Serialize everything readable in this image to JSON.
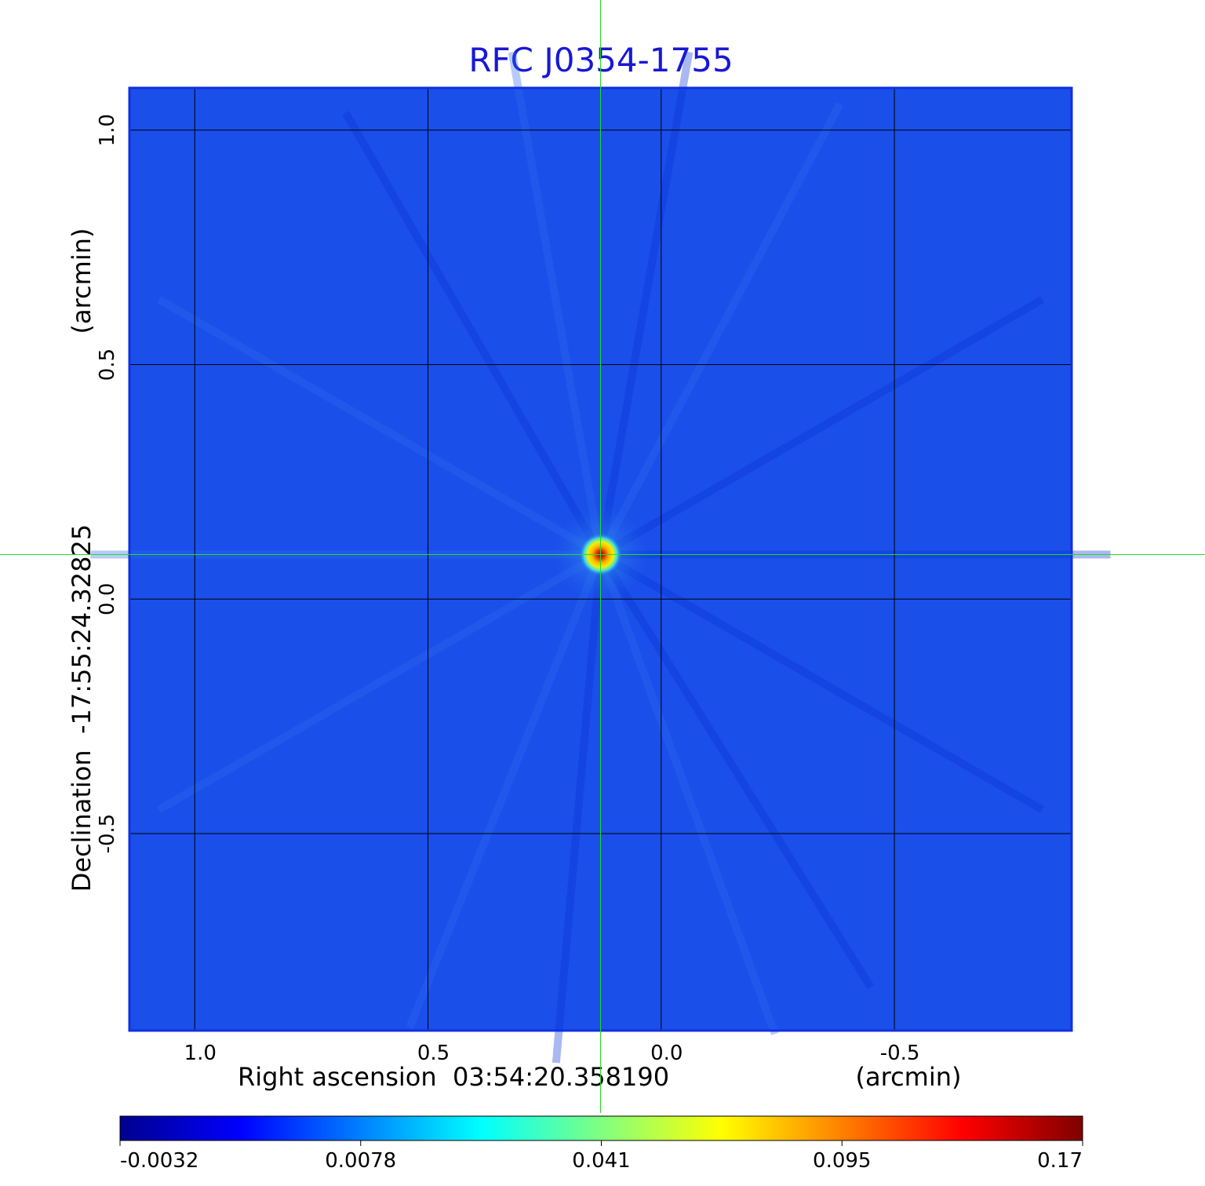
{
  "chart_data": {
    "type": "heatmap",
    "title": "RFC J0354-1755",
    "xlabel": "Right ascension  03:54:20.358190",
    "xunit": "(arcmin)",
    "ylabel": "Declination  -17:55:24.32825",
    "yunit": "(arcmin)",
    "xlim": [
      1.14,
      -0.88
    ],
    "ylim": [
      -0.92,
      1.09
    ],
    "x_ticks": [
      {
        "value": 1.0,
        "label": "1.0"
      },
      {
        "value": 0.5,
        "label": "0.5"
      },
      {
        "value": 0.0,
        "label": "0.0"
      },
      {
        "value": -0.5,
        "label": "-0.5"
      }
    ],
    "y_ticks": [
      {
        "value": 1.0,
        "label": "1.0"
      },
      {
        "value": 0.5,
        "label": "0.5"
      },
      {
        "value": 0.0,
        "label": "0.0"
      },
      {
        "value": -0.5,
        "label": "-0.5"
      }
    ],
    "grid": true,
    "crosshair": {
      "x": 0.13,
      "y": 0.095,
      "color": "#22dd22"
    },
    "colormap": "jet",
    "colorbar": {
      "orientation": "horizontal",
      "placement": "bottom",
      "ticks": [
        {
          "label": "-0.0032"
        },
        {
          "label": "0.0078"
        },
        {
          "label": "0.041"
        },
        {
          "label": "0.095"
        },
        {
          "label": "0.17"
        }
      ],
      "colors": [
        "#00008f",
        "#0000ff",
        "#0080ff",
        "#00ffff",
        "#80ff80",
        "#ffff00",
        "#ff8000",
        "#ff0000",
        "#800000"
      ]
    },
    "background_level": "#1a4fea",
    "source": {
      "x": 0.13,
      "y": 0.095,
      "peak": 0.17
    }
  }
}
